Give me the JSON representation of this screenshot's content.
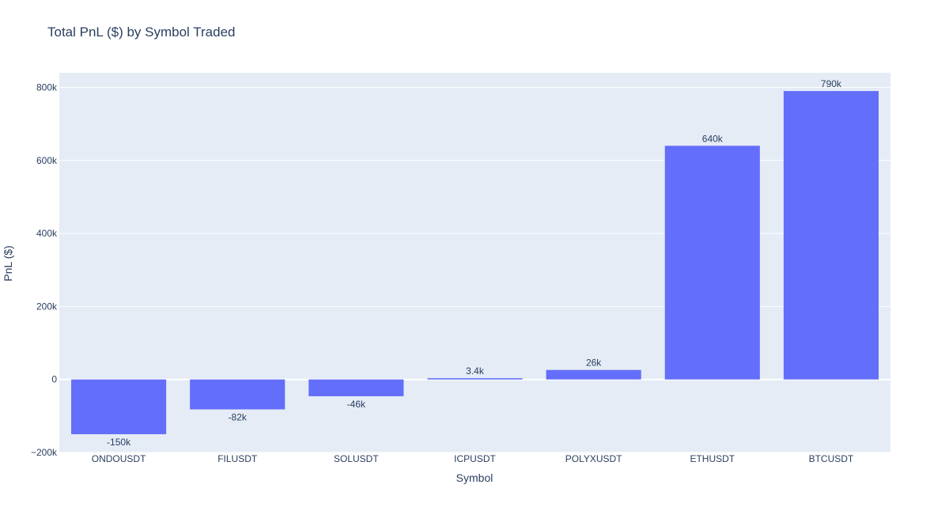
{
  "chart_data": {
    "type": "bar",
    "title": "Total PnL ($) by Symbol Traded",
    "xlabel": "Symbol",
    "ylabel": "PnL ($)",
    "categories": [
      "ONDOUSDT",
      "FILUSDT",
      "SOLUSDT",
      "ICPUSDT",
      "POLYXUSDT",
      "ETHUSDT",
      "BTCUSDT"
    ],
    "values": [
      -150000,
      -82000,
      -46000,
      3400,
      26000,
      640000,
      790000
    ],
    "value_labels": [
      "-150k",
      "-82k",
      "-46k",
      "3.4k",
      "26k",
      "640k",
      "790k"
    ],
    "ylim": [
      -200000,
      840000
    ],
    "y_ticks": [
      -200000,
      0,
      200000,
      400000,
      600000,
      800000
    ],
    "y_tick_labels": [
      "−200k",
      "0",
      "200k",
      "400k",
      "600k",
      "800k"
    ],
    "grid": true,
    "colors": {
      "bar": "#636efa",
      "plot_bg": "#e5ecf6",
      "grid": "#ffffff",
      "text": "#2a3f5f"
    }
  }
}
